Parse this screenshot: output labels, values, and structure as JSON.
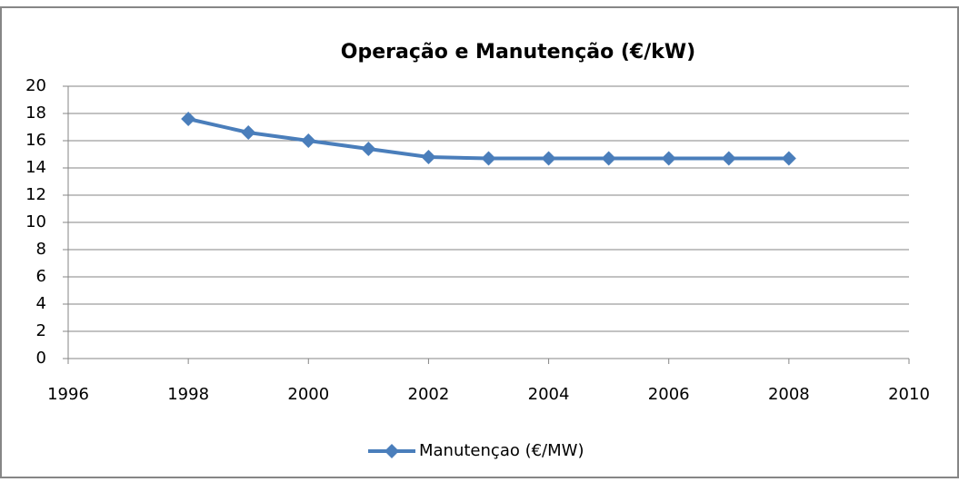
{
  "chart_data": {
    "type": "line",
    "title": "Operação e Manutenção (€/kW)",
    "x": [
      1998,
      1999,
      2000,
      2001,
      2002,
      2003,
      2004,
      2005,
      2006,
      2007,
      2008
    ],
    "series": [
      {
        "name": "Manutençao (€/MW)",
        "color": "#4a7ebb",
        "values": [
          17.6,
          16.6,
          16.0,
          15.4,
          14.8,
          14.7,
          14.7,
          14.7,
          14.7,
          14.7,
          14.7
        ]
      }
    ],
    "xlim": [
      1996,
      2010
    ],
    "xticks": [
      1996,
      1998,
      2000,
      2002,
      2004,
      2006,
      2008,
      2010
    ],
    "ylim": [
      0,
      20
    ],
    "yticks": [
      0,
      2,
      4,
      6,
      8,
      10,
      12,
      14,
      16,
      18,
      20
    ],
    "grid": true,
    "legend": "bottom"
  }
}
